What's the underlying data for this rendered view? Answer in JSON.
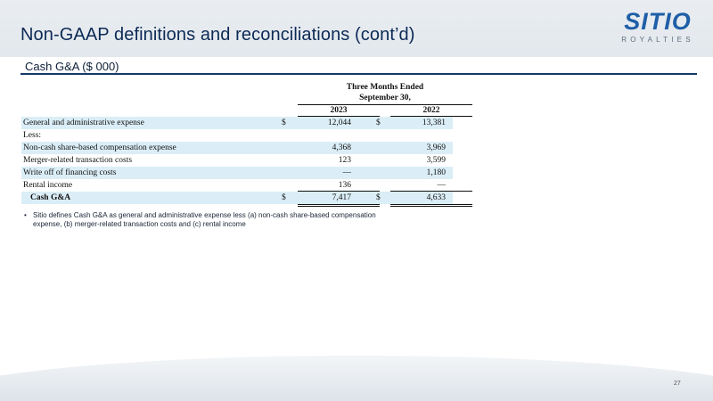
{
  "header": {
    "title": "Non-GAAP definitions and reconciliations (cont’d)",
    "logo_main": "SITIO",
    "logo_sub": "ROYALTIES"
  },
  "section": {
    "subtitle": "Cash G&A ($ 000)"
  },
  "table": {
    "period_line1": "Three Months Ended",
    "period_line2": "September 30,",
    "years": [
      "2023",
      "2022"
    ],
    "rows": [
      {
        "label": "General and administrative expense",
        "cur1": "$",
        "v2023": "12,044",
        "cur2": "$",
        "v2022": "13,381"
      },
      {
        "label": "Less:",
        "cur1": "",
        "v2023": "",
        "cur2": "",
        "v2022": ""
      },
      {
        "label": "Non-cash share-based compensation expense",
        "cur1": "",
        "v2023": "4,368",
        "cur2": "",
        "v2022": "3,969"
      },
      {
        "label": "Merger-related transaction costs",
        "cur1": "",
        "v2023": "123",
        "cur2": "",
        "v2022": "3,599"
      },
      {
        "label": "Write off of financing costs",
        "cur1": "",
        "v2023": "—",
        "cur2": "",
        "v2022": "1,180"
      },
      {
        "label": "Rental income",
        "cur1": "",
        "v2023": "136",
        "cur2": "",
        "v2022": "—"
      },
      {
        "label": "Cash G&A",
        "cur1": "$",
        "v2023": "7,417",
        "cur2": "$",
        "v2022": "4,633"
      }
    ]
  },
  "footnote": {
    "bullet": "•",
    "text": "Sitio defines Cash G&A as general and administrative expense less (a) non-cash share-based compensation expense, (b) merger-related transaction costs and (c) rental income"
  },
  "footer": {
    "page_number": "27"
  }
}
